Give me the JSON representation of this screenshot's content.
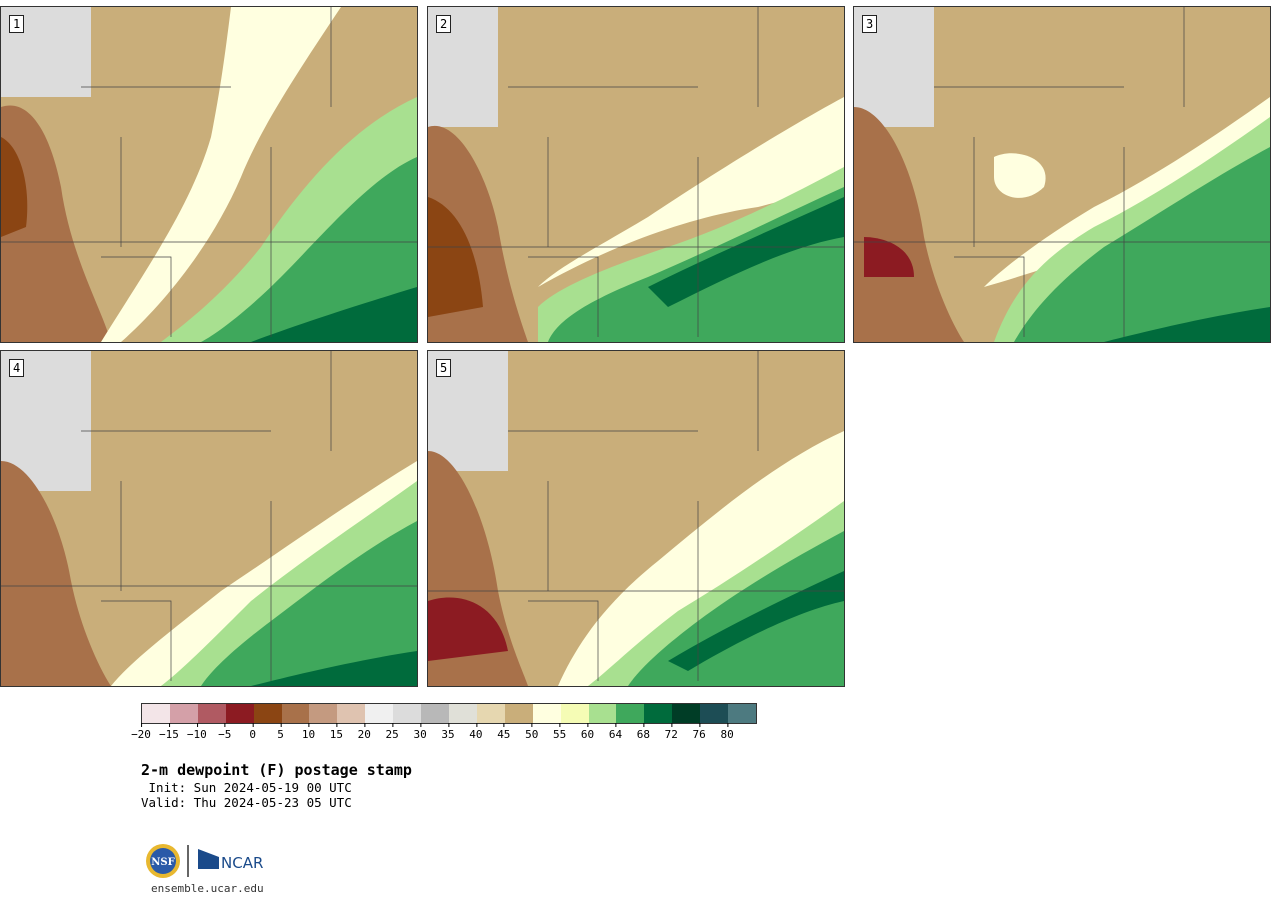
{
  "panels": [
    {
      "label": "1"
    },
    {
      "label": "2"
    },
    {
      "label": "3"
    },
    {
      "label": "4"
    },
    {
      "label": "5"
    }
  ],
  "colorbar": {
    "colors": [
      "#f3e5e8",
      "#d4a0a8",
      "#b05a62",
      "#8c1b22",
      "#8b4513",
      "#a8714a",
      "#c49a80",
      "#dfc3b0",
      "#f0f0f0",
      "#dcdcdc",
      "#b8b8b8",
      "#e0e0d8",
      "#e6d7b0",
      "#c9ae7a",
      "#ffffe0",
      "#f5fcb5",
      "#a8e090",
      "#3fa85c",
      "#006b3c",
      "#003d26",
      "#1d4d55",
      "#4d7a80"
    ],
    "tick_labels": [
      "−20",
      "−15",
      "−10",
      "−5",
      "0",
      "5",
      "10",
      "15",
      "20",
      "25",
      "30",
      "35",
      "40",
      "45",
      "50",
      "55",
      "60",
      "64",
      "68",
      "72",
      "76",
      "80"
    ]
  },
  "title": "2-m dewpoint (F) postage stamp",
  "init": " Init: Sun 2024-05-19 00 UTC",
  "valid": "Valid: Thu 2024-05-23 05 UTC",
  "logo": {
    "nsf": "NSF",
    "ncar": "NCAR"
  },
  "site": "ensemble.ucar.edu"
}
